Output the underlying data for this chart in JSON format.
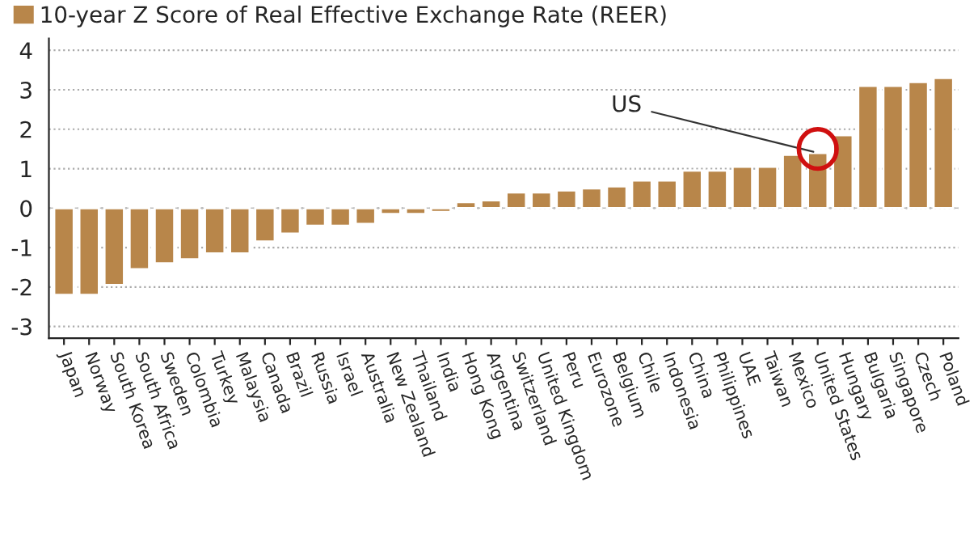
{
  "chart_data": {
    "type": "bar",
    "categories": [
      "Japan",
      "Norway",
      "South Korea",
      "South Africa",
      "Sweden",
      "Colombia",
      "Turkey",
      "Malaysia",
      "Canada",
      "Brazil",
      "Russia",
      "Israel",
      "Australia",
      "New Zealand",
      "Thailand",
      "India",
      "Hong Kong",
      "Argentina",
      "Switzerland",
      "United Kingdom",
      "Peru",
      "Eurozone",
      "Belgium",
      "Chile",
      "Indonesia",
      "China",
      "Philippines",
      "UAE",
      "Taiwan",
      "Mexico",
      "United States",
      "Hungary",
      "Bulgaria",
      "Singapore",
      "Czech",
      "Poland"
    ],
    "series": [
      {
        "name": "10-year Z Score of Real Effective Exchange Rate (REER)",
        "color": "#b8864a",
        "values": [
          -2.2,
          -2.2,
          -1.95,
          -1.55,
          -1.4,
          -1.3,
          -1.15,
          -1.15,
          -0.85,
          -0.65,
          -0.45,
          -0.45,
          -0.4,
          -0.15,
          -0.15,
          -0.1,
          0.15,
          0.2,
          0.4,
          0.4,
          0.45,
          0.5,
          0.55,
          0.7,
          0.7,
          0.95,
          0.95,
          1.05,
          1.05,
          1.35,
          1.4,
          1.85,
          3.1,
          3.1,
          3.2,
          3.3
        ]
      }
    ],
    "ylim": [
      -3.3,
      4.3
    ],
    "yticks": [
      -3,
      -2,
      -1,
      0,
      1,
      2,
      3,
      4
    ],
    "grid": "y",
    "legend": "top left",
    "annotations": [
      {
        "text": "US",
        "x": "United States",
        "y": 1.4
      }
    ]
  }
}
